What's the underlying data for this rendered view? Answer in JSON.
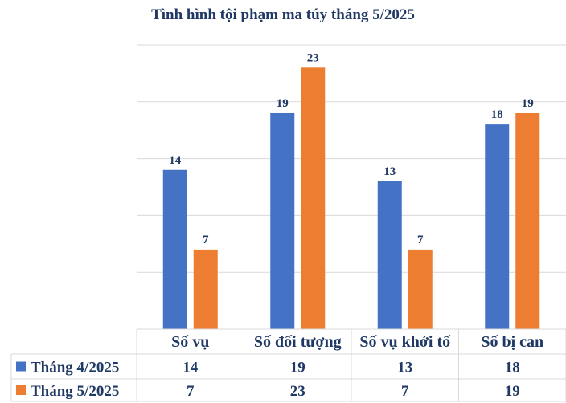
{
  "chart_data": {
    "type": "bar",
    "title": "Tình hình tội phạm ma túy tháng 5/2025",
    "categories": [
      "Số vụ",
      "Số đối tượng",
      "Số vụ khởi tố",
      "Số bị can"
    ],
    "series": [
      {
        "name": "Tháng 4/2025",
        "values": [
          14,
          19,
          13,
          18
        ],
        "color": "#4472c4"
      },
      {
        "name": "Tháng 5/2025",
        "values": [
          7,
          23,
          7,
          19
        ],
        "color": "#ed7d31"
      }
    ],
    "ylim": [
      0,
      25
    ],
    "grid": true,
    "legend": "data-table",
    "data_table": true,
    "title_color": "#1f3864",
    "label_color": "#1f3864",
    "grid_color": "#d9d9d9"
  }
}
